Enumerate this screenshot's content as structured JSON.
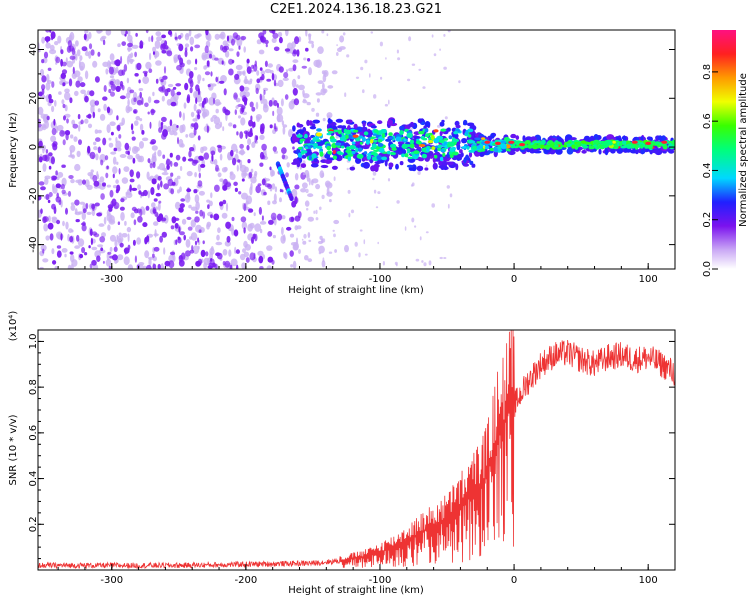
{
  "title": "C2E1.2024.136.18.23.G21",
  "colors": {
    "snr_line": "#ee3333",
    "axis": "#000000",
    "spectrogram_noise": "#7a1cf0",
    "spectrogram_noise_light": "#c9b0f2"
  },
  "chart_data": [
    {
      "type": "heatmap",
      "name": "spectrogram",
      "xlabel": "Height of straight line (km)",
      "ylabel": "Frequency (Hz)",
      "xlim": [
        -355,
        120
      ],
      "ylim": [
        -50,
        48
      ],
      "xticks": [
        -300,
        -200,
        -100,
        0,
        100
      ],
      "xtick_labels": [
        "-300",
        "-200",
        "-100",
        "0",
        "100"
      ],
      "yticks": [
        -40,
        -20,
        0,
        20,
        40
      ],
      "ytick_labels": [
        "-40",
        "-20",
        "0",
        "20",
        "40"
      ],
      "colorbar": {
        "label": "Normalized spectral amplitude",
        "range": [
          0.0,
          0.97
        ],
        "ticks": [
          0.0,
          0.2,
          0.4,
          0.6,
          0.8
        ],
        "tick_labels": [
          "0.0",
          "0.2",
          "0.4",
          "0.6",
          "0.8"
        ]
      },
      "features": [
        {
          "label": "diffuse noise",
          "x_range": [
            -355,
            -130
          ],
          "freq_range": [
            -50,
            48
          ],
          "amplitude": 0.1
        },
        {
          "label": "tilted streak",
          "x": [
            -176,
            -166
          ],
          "freq": [
            -7,
            -21
          ],
          "amplitude": 0.28
        },
        {
          "label": "signal band",
          "x_range": [
            -165,
            120
          ],
          "center_freq": 1,
          "amplitude": 0.4
        }
      ]
    },
    {
      "type": "line",
      "name": "snr",
      "xlabel": "Height of straight line (km)",
      "ylabel": "SNR (10 * v/v)",
      "scale_label": "(x10⁴)",
      "xlim": [
        -355,
        120
      ],
      "ylim": [
        0.0,
        1.05
      ],
      "xticks": [
        -300,
        -200,
        -100,
        0,
        100
      ],
      "xtick_labels": [
        "-300",
        "-200",
        "-100",
        "0",
        "100"
      ],
      "yticks": [
        0.2,
        0.4,
        0.6,
        0.8,
        1.0
      ],
      "ytick_labels": [
        "0.2",
        "0.4",
        "0.6",
        "0.8",
        "1.0"
      ],
      "series": [
        {
          "name": "SNR",
          "x": [
            -355,
            -300,
            -250,
            -200,
            -150,
            -130,
            -110,
            -90,
            -70,
            -50,
            -40,
            -30,
            -20,
            -15,
            -10,
            -5,
            0,
            10,
            20,
            30,
            40,
            50,
            60,
            70,
            80,
            90,
            100,
            110,
            120
          ],
          "y": [
            0.02,
            0.02,
            0.02,
            0.025,
            0.03,
            0.04,
            0.06,
            0.1,
            0.16,
            0.22,
            0.28,
            0.34,
            0.42,
            0.52,
            0.62,
            0.68,
            0.72,
            0.82,
            0.9,
            0.94,
            0.95,
            0.92,
            0.9,
            0.93,
            0.94,
            0.92,
            0.93,
            0.9,
            0.86
          ]
        }
      ]
    }
  ]
}
